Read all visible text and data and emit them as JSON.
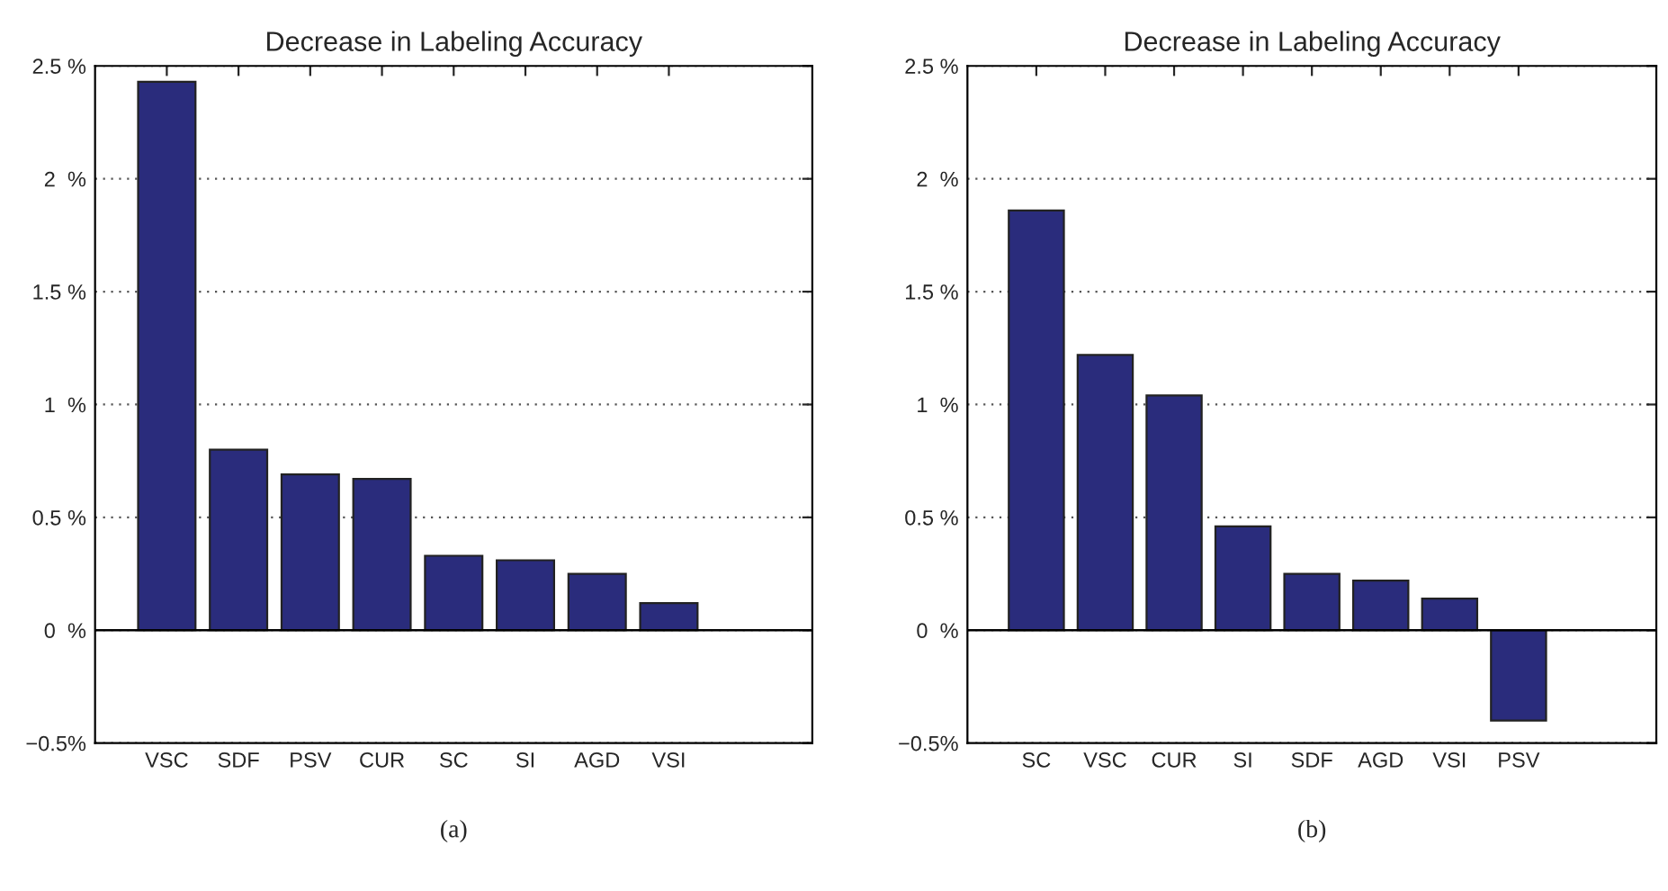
{
  "chart_data": [
    {
      "type": "bar",
      "title": "Decrease in Labeling Accuracy",
      "categories": [
        "VSC",
        "SDF",
        "PSV",
        "CUR",
        "SC",
        "SI",
        "AGD",
        "VSI"
      ],
      "values": [
        2.43,
        0.8,
        0.69,
        0.67,
        0.33,
        0.31,
        0.25,
        0.12
      ],
      "color": "#2a2c7c",
      "ylim": [
        -0.5,
        2.5
      ],
      "yticks": [
        {
          "value": -0.5,
          "label": "−0.5%"
        },
        {
          "value": 0,
          "label": "0  %"
        },
        {
          "value": 0.5,
          "label": "0.5 %"
        },
        {
          "value": 1,
          "label": "1  %"
        },
        {
          "value": 1.5,
          "label": "1.5 %"
        },
        {
          "value": 2,
          "label": "2  %"
        },
        {
          "value": 2.5,
          "label": "2.5 %"
        }
      ],
      "grid": "y",
      "ref_lines": [
        {
          "axis": "y",
          "value": 0,
          "label": null
        }
      ],
      "annotations": [
        "(a)"
      ]
    },
    {
      "type": "bar",
      "title": "Decrease in Labeling Accuracy",
      "categories": [
        "SC",
        "VSC",
        "CUR",
        "SI",
        "SDF",
        "AGD",
        "VSI",
        "PSV"
      ],
      "values": [
        1.86,
        1.22,
        1.04,
        0.46,
        0.25,
        0.22,
        0.14,
        -0.4
      ],
      "color": "#2a2c7c",
      "ylim": [
        -0.5,
        2.5
      ],
      "yticks": [
        {
          "value": -0.5,
          "label": "−0.5%"
        },
        {
          "value": 0,
          "label": "0  %"
        },
        {
          "value": 0.5,
          "label": "0.5 %"
        },
        {
          "value": 1,
          "label": "1  %"
        },
        {
          "value": 1.5,
          "label": "1.5 %"
        },
        {
          "value": 2,
          "label": "2  %"
        },
        {
          "value": 2.5,
          "label": "2.5 %"
        }
      ],
      "grid": "y",
      "ref_lines": [
        {
          "axis": "y",
          "value": 0,
          "label": null
        }
      ],
      "annotations": [
        "(b)"
      ]
    }
  ]
}
